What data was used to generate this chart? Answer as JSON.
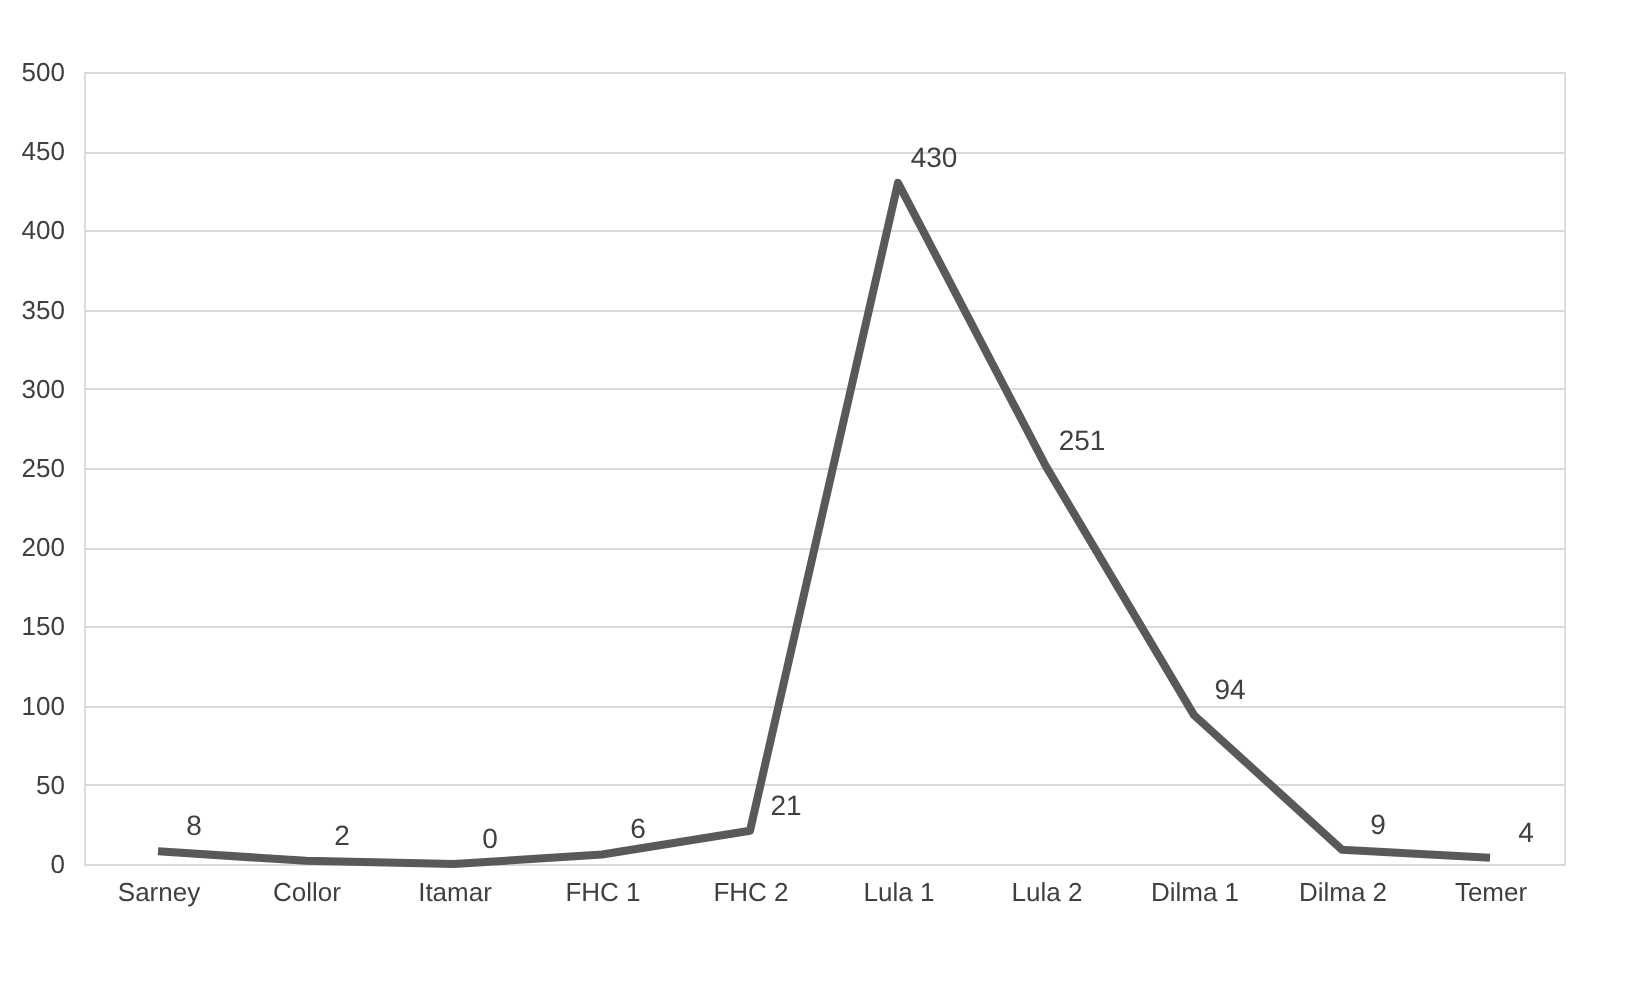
{
  "chart_data": {
    "type": "line",
    "categories": [
      "Sarney",
      "Collor",
      "Itamar",
      "FHC 1",
      "FHC 2",
      "Lula 1",
      "Lula 2",
      "Dilma 1",
      "Dilma 2",
      "Temer"
    ],
    "series": [
      {
        "color": "#595959",
        "values": [
          8,
          2,
          0,
          6,
          21,
          430,
          251,
          94,
          9,
          4
        ]
      }
    ],
    "ylim": [
      0,
      500
    ],
    "yticks": [
      0,
      50,
      100,
      150,
      200,
      250,
      300,
      350,
      400,
      450,
      500
    ],
    "grid": "y",
    "data_labels": true,
    "marker": "none",
    "line_style": "solid"
  }
}
